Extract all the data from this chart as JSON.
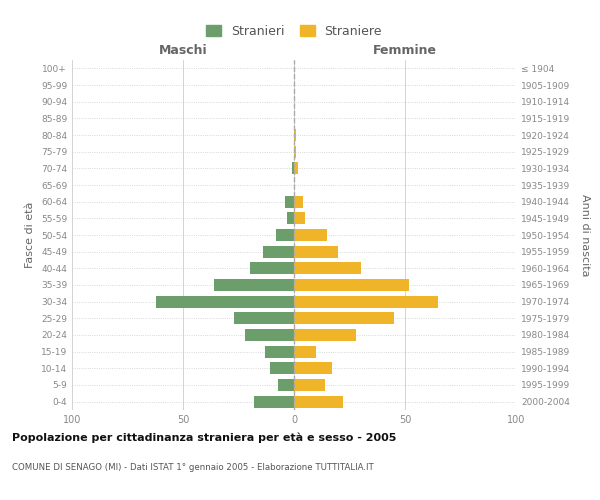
{
  "age_groups": [
    "100+",
    "95-99",
    "90-94",
    "85-89",
    "80-84",
    "75-79",
    "70-74",
    "65-69",
    "60-64",
    "55-59",
    "50-54",
    "45-49",
    "40-44",
    "35-39",
    "30-34",
    "25-29",
    "20-24",
    "15-19",
    "10-14",
    "5-9",
    "0-4"
  ],
  "birth_years": [
    "≤ 1904",
    "1905-1909",
    "1910-1914",
    "1915-1919",
    "1920-1924",
    "1925-1929",
    "1930-1934",
    "1935-1939",
    "1940-1944",
    "1945-1949",
    "1950-1954",
    "1955-1959",
    "1960-1964",
    "1965-1969",
    "1970-1974",
    "1975-1979",
    "1980-1984",
    "1985-1989",
    "1990-1994",
    "1995-1999",
    "2000-2004"
  ],
  "males": [
    0,
    0,
    0,
    0,
    0,
    0,
    1,
    0,
    4,
    3,
    8,
    14,
    20,
    36,
    62,
    27,
    22,
    13,
    11,
    7,
    18
  ],
  "females": [
    0,
    0,
    0,
    0,
    1,
    1,
    2,
    0,
    4,
    5,
    15,
    20,
    30,
    52,
    65,
    45,
    28,
    10,
    17,
    14,
    22
  ],
  "male_color": "#6b9e6b",
  "female_color": "#f0b429",
  "xlim": 100,
  "title": "Popolazione per cittadinanza straniera per età e sesso - 2005",
  "subtitle": "COMUNE DI SENAGO (MI) - Dati ISTAT 1° gennaio 2005 - Elaborazione TUTTITALIA.IT",
  "xlabel_left": "Maschi",
  "xlabel_right": "Femmine",
  "ylabel_left": "Fasce di età",
  "ylabel_right": "Anni di nascita",
  "legend_stranieri": "Stranieri",
  "legend_straniere": "Straniere",
  "background_color": "#ffffff",
  "grid_color": "#cccccc",
  "dashed_line_color": "#aaaaaa"
}
